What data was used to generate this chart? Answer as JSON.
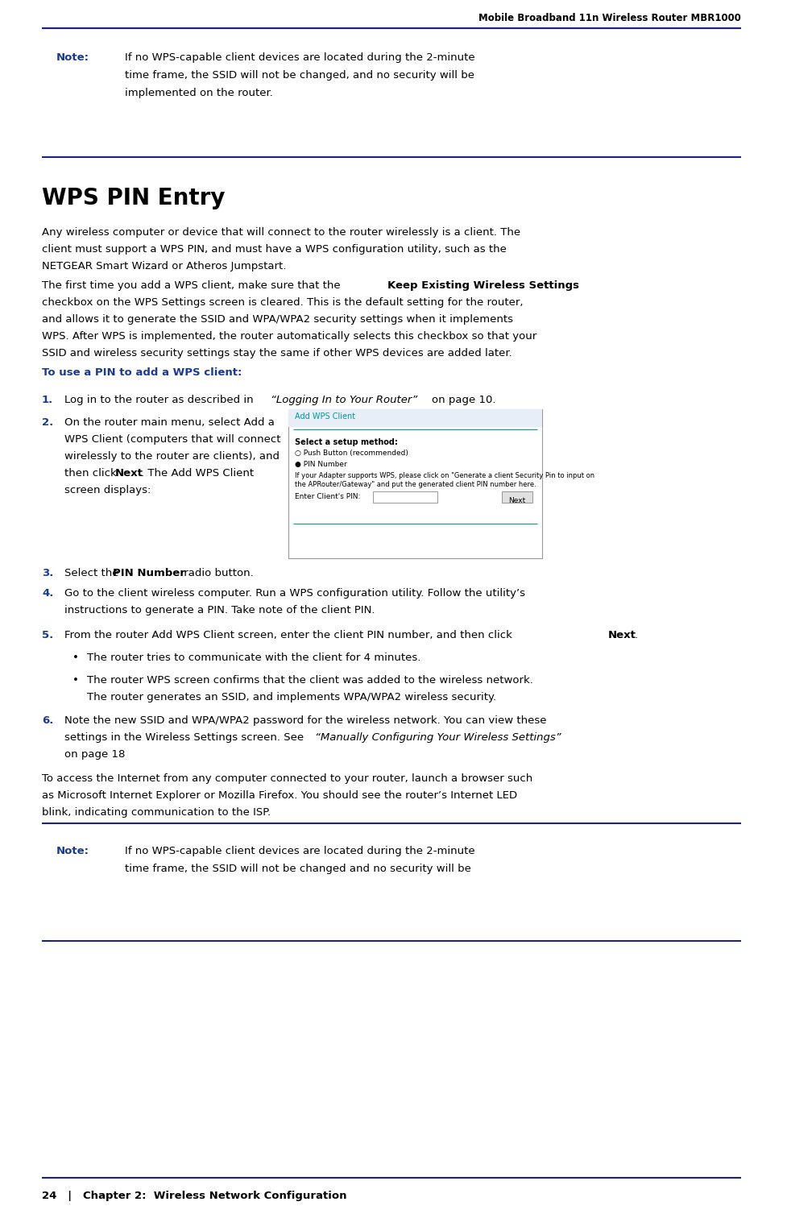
{
  "bg_color": "#ffffff",
  "header_text": "Mobile Broadband 11n Wireless Router MBR1000",
  "footer_left": "24   |   Chapter 2:  Wireless Network Configuration",
  "rule_color": "#1a237e",
  "note_label_color": "#1a3a8f",
  "procedure_color": "#1a3a8f",
  "wps_title_color": "#009999",
  "note1_label": "Note:",
  "note2_label": "Note:",
  "section_title": "WPS PIN Entry",
  "wps_screenshot_title": "Add WPS Client",
  "wps_line1": "Select a setup method:",
  "wps_radio1": "Push Button (recommended)",
  "wps_radio2": "PIN Number",
  "wps_desc1": "If your Adapter supports WPS, please click on \"Generate a client Security Pin to input on",
  "wps_desc2": "the APRouter/Gateway\" and put the generated client PIN number here.",
  "wps_pin_label": "Enter Client's PIN:",
  "wps_next_btn": "Next"
}
